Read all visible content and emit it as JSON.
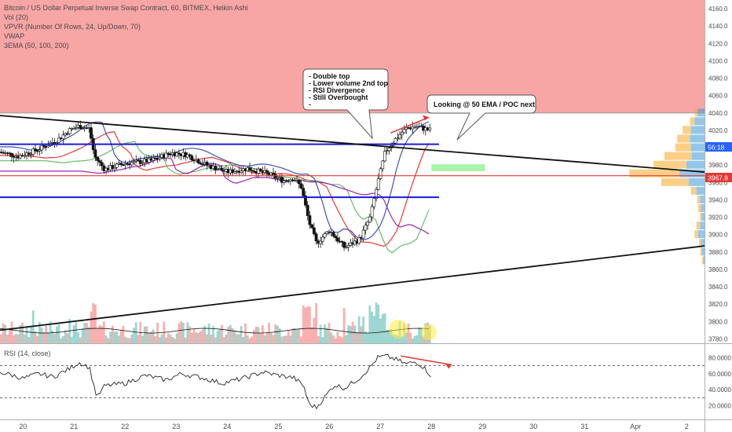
{
  "header": {
    "title": "Bitcoin / US Dollar Perpetual Inverse Swap Contract, 60, BITMEX, Heikin Ashi",
    "indicators": [
      "Vol (20)",
      "VPVR (Number Of Rows, 24, Up/Down, 70)",
      "VWAP",
      "3EMA (50, 100, 200)"
    ]
  },
  "annotations": {
    "callout_1": [
      "- Double top",
      "- Lower volume 2nd top",
      "- RSI Divergence",
      "- Still Overbought",
      "-"
    ],
    "callout_2": "Looking @ 50 EMA / POC next"
  },
  "price_badges": {
    "current": "56:18",
    "poc": "3967.8"
  },
  "colors": {
    "up": "#26a69a",
    "down": "#ef5350",
    "resistance_zone": "#f8a5a5",
    "level_line": "#1a1ad4",
    "poc_line": "#e53935",
    "ema50": "#e53935",
    "ema100": "#66bb6a",
    "ema200": "#9c27b0",
    "vwap": "#3f51b5",
    "vpvr_up": "#3a99d8",
    "vpvr_down": "#f9a825",
    "highlight": "#ffeb3b"
  },
  "chart_data": [
    {
      "type": "candlestick",
      "title": "Bitcoin / US Dollar Perpetual Inverse Swap Contract, 60, BITMEX, Heikin Ashi",
      "x_ticks": [
        "20",
        "21",
        "22",
        "23",
        "24",
        "25",
        "26",
        "27",
        "28",
        "29",
        "30",
        "31",
        "Apr",
        "2"
      ],
      "y_ticks": [
        4160,
        4140,
        4120,
        4100,
        4080,
        4060,
        4040,
        4020,
        4000,
        3980,
        3960,
        3940,
        3920,
        3900,
        3880,
        3860,
        3840,
        3820,
        3800,
        3780
      ],
      "ylim": [
        3775,
        4170
      ],
      "xlim": [
        19.55,
        33.35
      ],
      "price_path": [
        [
          19.55,
          3995
        ],
        [
          19.9,
          3990
        ],
        [
          20.3,
          3998
        ],
        [
          20.7,
          4010
        ],
        [
          20.9,
          4020
        ],
        [
          21.1,
          4025
        ],
        [
          21.3,
          4022
        ],
        [
          21.4,
          3990
        ],
        [
          21.6,
          3975
        ],
        [
          22.0,
          3982
        ],
        [
          22.5,
          3985
        ],
        [
          22.9,
          3994
        ],
        [
          23.2,
          3992
        ],
        [
          23.6,
          3980
        ],
        [
          24.0,
          3972
        ],
        [
          24.4,
          3976
        ],
        [
          24.8,
          3970
        ],
        [
          25.1,
          3962
        ],
        [
          25.3,
          3965
        ],
        [
          25.45,
          3955
        ],
        [
          25.6,
          3915
        ],
        [
          25.75,
          3890
        ],
        [
          26.0,
          3905
        ],
        [
          26.3,
          3885
        ],
        [
          26.6,
          3895
        ],
        [
          26.8,
          3920
        ],
        [
          26.95,
          3960
        ],
        [
          27.1,
          3996
        ],
        [
          27.3,
          4010
        ],
        [
          27.5,
          4022
        ],
        [
          27.7,
          4025
        ],
        [
          27.85,
          4022
        ],
        [
          28.0,
          4020
        ]
      ],
      "resistance_zone": [
        4040,
        4170
      ],
      "horizontal_levels": [
        4004,
        3943
      ],
      "poc_level": 3967.8,
      "trendlines": [
        {
          "label": "upper",
          "from": [
            19.55,
            4037
          ],
          "to": [
            33.35,
            3972
          ]
        },
        {
          "label": "lower",
          "from": [
            19.55,
            3790
          ],
          "to": [
            33.35,
            3887
          ]
        }
      ],
      "target_zone": {
        "x": [
          28.0,
          29.05
        ],
        "y": [
          3973,
          3981
        ]
      },
      "current_price": 4004,
      "vpvr_profile": [
        {
          "price": 4040,
          "up": 15,
          "down": 6
        },
        {
          "price": 4030,
          "up": 22,
          "down": 10
        },
        {
          "price": 4020,
          "up": 30,
          "down": 18
        },
        {
          "price": 4010,
          "up": 32,
          "down": 28
        },
        {
          "price": 4000,
          "up": 30,
          "down": 34
        },
        {
          "price": 3990,
          "up": 28,
          "down": 60
        },
        {
          "price": 3980,
          "up": 40,
          "down": 72
        },
        {
          "price": 3970,
          "up": 55,
          "down": 110
        },
        {
          "price": 3960,
          "up": 35,
          "down": 60
        },
        {
          "price": 3950,
          "up": 18,
          "down": 12
        },
        {
          "price": 3940,
          "up": 10,
          "down": 6
        },
        {
          "price": 3930,
          "up": 8,
          "down": 6
        },
        {
          "price": 3920,
          "up": 6,
          "down": 4
        },
        {
          "price": 3910,
          "up": 10,
          "down": 8
        },
        {
          "price": 3900,
          "up": 14,
          "down": 8
        },
        {
          "price": 3890,
          "up": 8,
          "down": 4
        },
        {
          "price": 3880,
          "up": 6,
          "down": 3
        },
        {
          "price": 3870,
          "up": 3,
          "down": 2
        }
      ]
    },
    {
      "type": "line",
      "title": "RSI (14, close)",
      "y_ticks": [
        80,
        60,
        40,
        20
      ],
      "ylim": [
        5,
        95
      ],
      "levels": [
        70,
        30
      ],
      "x": [
        19.55,
        19.8,
        20.0,
        20.3,
        20.6,
        20.9,
        21.1,
        21.3,
        21.45,
        21.6,
        22.0,
        22.4,
        22.8,
        23.1,
        23.5,
        23.9,
        24.3,
        24.7,
        25.0,
        25.3,
        25.5,
        25.6,
        25.75,
        25.9,
        26.1,
        26.3,
        26.6,
        26.8,
        26.95,
        27.1,
        27.3,
        27.5,
        27.7,
        27.85,
        28.0
      ],
      "y": [
        62,
        58,
        54,
        60,
        56,
        66,
        74,
        68,
        30,
        45,
        48,
        58,
        52,
        60,
        55,
        48,
        54,
        62,
        58,
        55,
        45,
        22,
        18,
        30,
        46,
        42,
        55,
        68,
        80,
        82,
        78,
        72,
        75,
        68,
        57
      ]
    }
  ]
}
